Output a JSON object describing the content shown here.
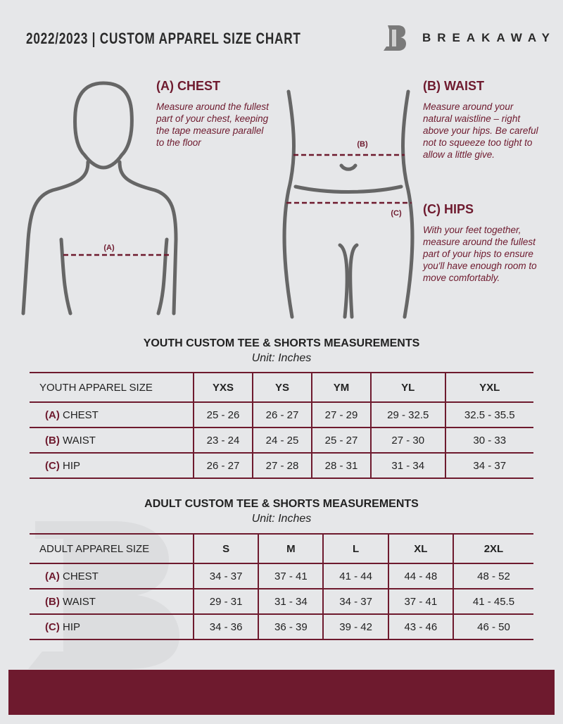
{
  "header": {
    "title": "2022/2023 | CUSTOM APPAREL SIZE CHART",
    "brand": "BREAKAWAY"
  },
  "colors": {
    "accent": "#6e1a2e",
    "background": "#e6e7e9"
  },
  "guide": {
    "chest": {
      "title": "(A) CHEST",
      "text": "Measure around the fullest part of your chest, keeping the tape measure parallel to the floor",
      "marker": "(A)"
    },
    "waist": {
      "title": "(B) WAIST",
      "text": "Measure around your natural waistline – right above your hips. Be careful not to squeeze too tight to allow a little give.",
      "marker": "(B)"
    },
    "hips": {
      "title": "(C) HIPS",
      "text": "With your feet together, measure around the fullest part of your hips to ensure you'll have enough room to move comfortably.",
      "marker": "(C)"
    }
  },
  "youth": {
    "title": "YOUTH CUSTOM TEE & SHORTS MEASUREMENTS",
    "unit": "Unit: Inches",
    "size_label": "YOUTH APPAREL SIZE",
    "sizes": [
      "YXS",
      "YS",
      "YM",
      "YL",
      "YXL"
    ],
    "rows": [
      {
        "letter": "(A)",
        "name": "CHEST",
        "values": [
          "25 - 26",
          "26 - 27",
          "27 - 29",
          "29 - 32.5",
          "32.5 - 35.5"
        ]
      },
      {
        "letter": "(B)",
        "name": "WAIST",
        "values": [
          "23 - 24",
          "24 - 25",
          "25 - 27",
          "27 - 30",
          "30 - 33"
        ]
      },
      {
        "letter": "(C)",
        "name": "HIP",
        "values": [
          "26 - 27",
          "27 - 28",
          "28 - 31",
          "31 - 34",
          "34 - 37"
        ]
      }
    ]
  },
  "adult": {
    "title": "ADULT CUSTOM TEE & SHORTS MEASUREMENTS",
    "unit": "Unit: Inches",
    "size_label": "ADULT APPAREL SIZE",
    "sizes": [
      "S",
      "M",
      "L",
      "XL",
      "2XL"
    ],
    "rows": [
      {
        "letter": "(A)",
        "name": "CHEST",
        "values": [
          "34 - 37",
          "37 - 41",
          "41 - 44",
          "44 - 48",
          "48 - 52"
        ]
      },
      {
        "letter": "(B)",
        "name": "WAIST",
        "values": [
          "29 - 31",
          "31 - 34",
          "34 - 37",
          "37 - 41",
          "41 - 45.5"
        ]
      },
      {
        "letter": "(C)",
        "name": "HIP",
        "values": [
          "34 - 36",
          "36 - 39",
          "39 - 42",
          "43 - 46",
          "46 - 50"
        ]
      }
    ]
  }
}
